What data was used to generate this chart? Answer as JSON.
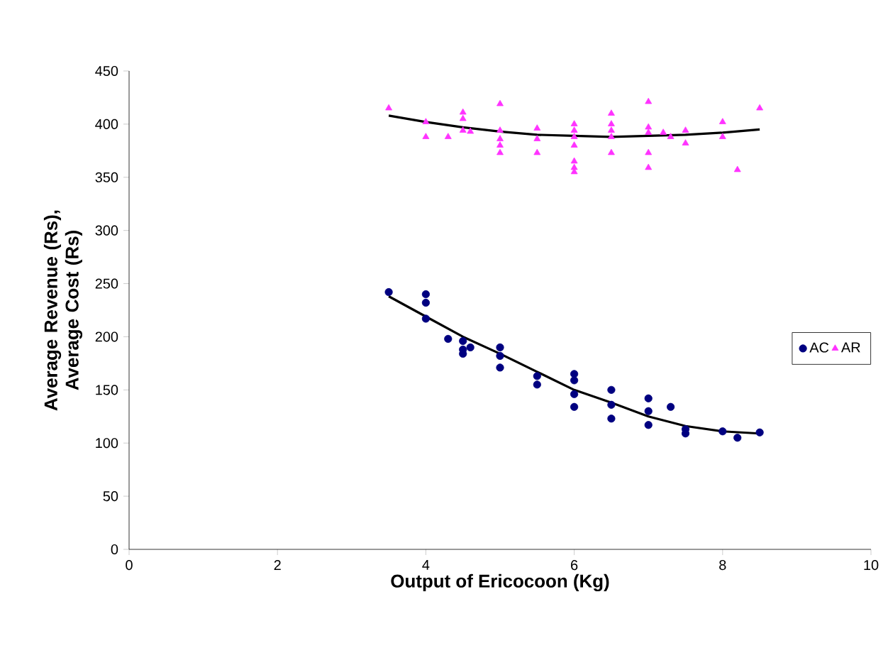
{
  "chart_data": {
    "type": "scatter",
    "xlabel": "Output of Ericocoon (Kg)",
    "ylabel": "Average Revenue (Rs), Average Cost (Rs)",
    "xlim": [
      0,
      10
    ],
    "ylim": [
      0,
      450
    ],
    "xticks": [
      0,
      2,
      4,
      6,
      8,
      10
    ],
    "yticks": [
      0,
      50,
      100,
      150,
      200,
      250,
      300,
      350,
      400,
      450
    ],
    "grid": false,
    "legend": "right",
    "series": [
      {
        "name": "AC",
        "color": "#000080",
        "marker": "circle",
        "x": [
          3.5,
          4.0,
          4.0,
          4.0,
          4.3,
          4.5,
          4.5,
          4.5,
          4.6,
          5.0,
          5.0,
          5.0,
          5.5,
          5.5,
          6.0,
          6.0,
          6.0,
          6.0,
          6.5,
          6.5,
          6.5,
          7.0,
          7.0,
          7.0,
          7.3,
          7.5,
          7.5,
          8.0,
          8.2,
          8.5
        ],
        "values": [
          242,
          240,
          232,
          217,
          198,
          196,
          188,
          184,
          190,
          190,
          182,
          171,
          163,
          155,
          165,
          159,
          146,
          134,
          150,
          136,
          123,
          142,
          130,
          117,
          134,
          113,
          109,
          111,
          105,
          110
        ]
      },
      {
        "name": "AR",
        "color": "#ff33ff",
        "marker": "triangle",
        "x": [
          3.5,
          4.0,
          4.0,
          4.3,
          4.5,
          4.5,
          4.5,
          4.6,
          5.0,
          5.0,
          5.0,
          5.0,
          5.0,
          5.5,
          5.5,
          5.5,
          6.0,
          6.0,
          6.0,
          6.0,
          6.0,
          6.0,
          6.0,
          6.5,
          6.5,
          6.5,
          6.5,
          6.5,
          7.0,
          7.0,
          7.0,
          7.0,
          7.0,
          7.2,
          7.3,
          7.5,
          7.5,
          8.0,
          8.0,
          8.2,
          8.5
        ],
        "values": [
          415,
          402,
          388,
          388,
          411,
          405,
          394,
          393,
          419,
          394,
          386,
          380,
          373,
          396,
          386,
          373,
          400,
          394,
          388,
          380,
          365,
          359,
          355,
          410,
          400,
          394,
          388,
          373,
          421,
          397,
          392,
          373,
          359,
          392,
          388,
          394,
          382,
          402,
          388,
          357,
          415
        ]
      },
      {
        "type": "line",
        "color": "#000000",
        "marker": "none",
        "x": [
          3.5,
          4.0,
          4.5,
          5.0,
          5.5,
          6.0,
          6.5,
          7.0,
          7.5,
          8.0,
          8.5
        ],
        "values": [
          238,
          219,
          200,
          184,
          167,
          150,
          138,
          125,
          116,
          111,
          109
        ]
      },
      {
        "type": "line",
        "color": "#000000",
        "marker": "none",
        "x": [
          3.5,
          4.0,
          4.5,
          5.0,
          5.5,
          6.0,
          6.5,
          7.0,
          7.5,
          8.0,
          8.5
        ],
        "values": [
          408,
          402,
          397,
          393,
          390,
          389,
          388,
          389,
          390,
          392,
          395
        ]
      }
    ]
  }
}
